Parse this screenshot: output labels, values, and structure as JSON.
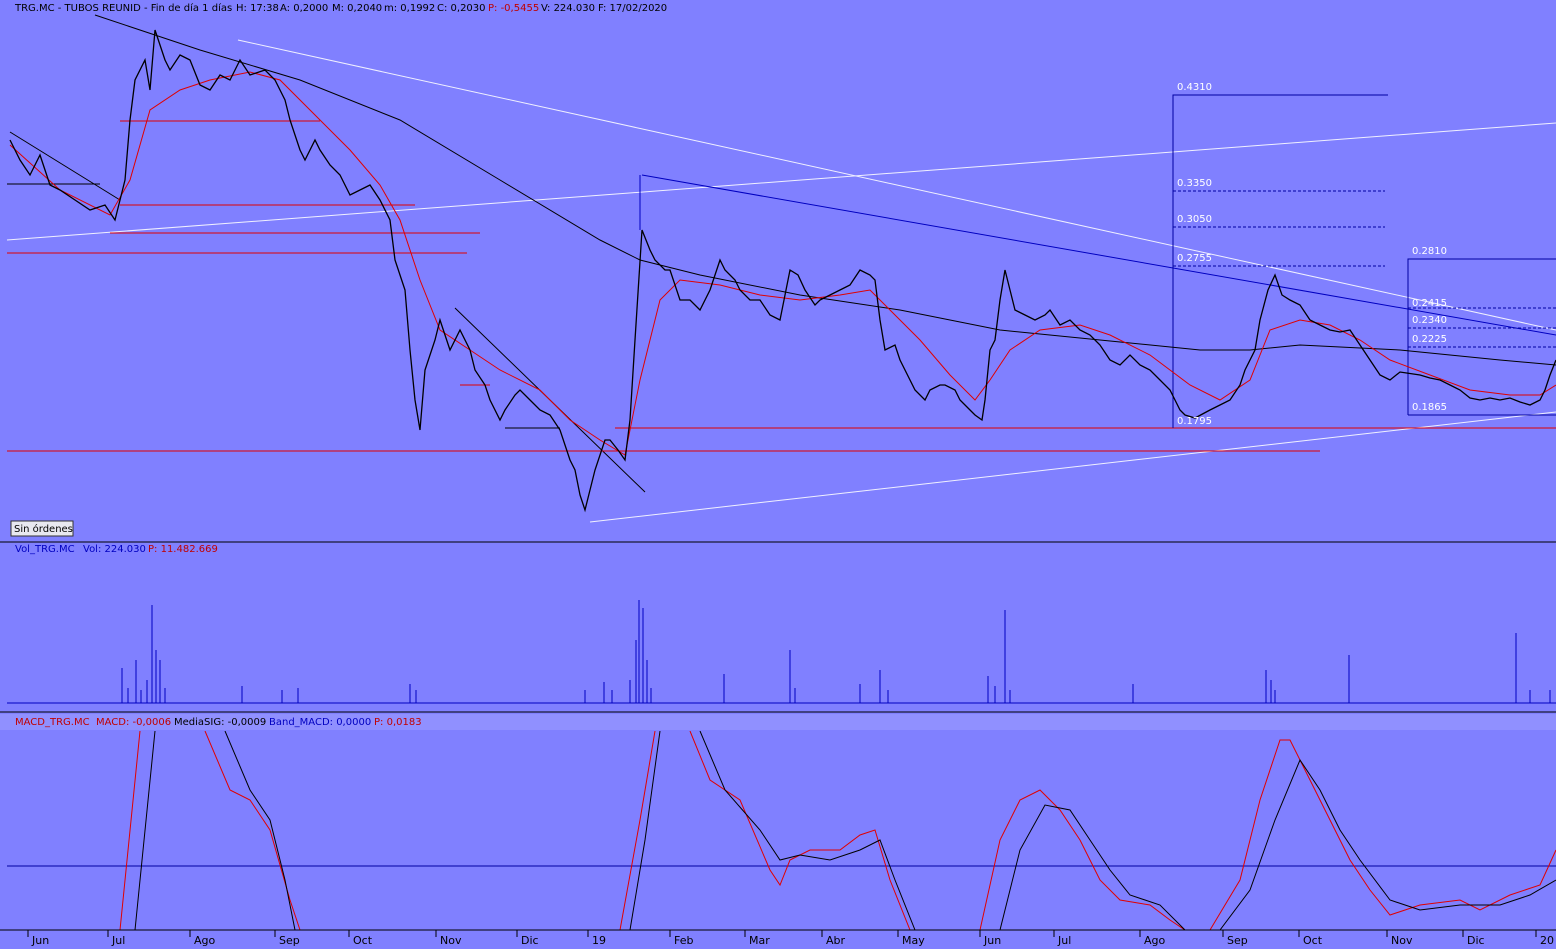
{
  "header": {
    "symbol": "TRG.MC - TUBOS REUNID - Fin de día 1 días",
    "hour": "H: 17:38",
    "open": "A: 0,2000",
    "high": "M: 0,2040",
    "low": "m: 0,1992",
    "close": "C: 0,2030",
    "change": "P: -0,5455",
    "volume": "V: 224.030",
    "date": "F: 17/02/2020"
  },
  "fib_left": [
    "0.4310",
    "0.3350",
    "0.3050",
    "0.2755",
    "0.1795"
  ],
  "fib_right": [
    "0.2810",
    "0.2415",
    "0.2340",
    "0.2225",
    "0.1865"
  ],
  "button": "Sin órdenes",
  "volume_panel": {
    "name": "Vol_TRG.MC",
    "vol": "Vol: 224.030",
    "p": "P: 11.482.669"
  },
  "macd_panel": {
    "name": "MACD_TRG.MC",
    "macd": "MACD: -0,0006",
    "signal": "MediaSIG: -0,0009",
    "band": "Band_MACD: 0,0000",
    "p": "P: 0,0183"
  },
  "x_axis": [
    "Jun",
    "Jul",
    "Ago",
    "Sep",
    "Oct",
    "Nov",
    "Dic",
    "19",
    "Feb",
    "Mar",
    "Abr",
    "May",
    "Jun",
    "Jul",
    "Ago",
    "Sep",
    "Oct",
    "Nov",
    "Dic",
    "20"
  ]
}
